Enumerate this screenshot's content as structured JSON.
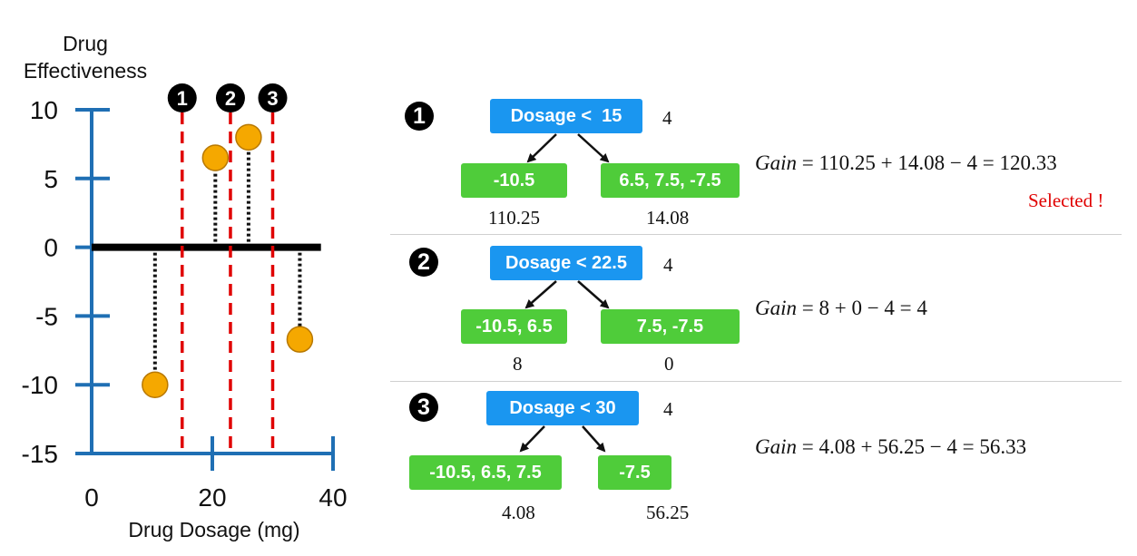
{
  "chart_data": {
    "type": "scatter",
    "ylabel_line1": "Drug",
    "ylabel_line2": "Effectiveness",
    "xlabel": "Drug Dosage (mg)",
    "xlim": [
      0,
      40
    ],
    "ylim": [
      -15,
      10
    ],
    "xticks": [
      0,
      20,
      40
    ],
    "yticks": [
      10,
      5,
      0,
      -5,
      -10,
      -15
    ],
    "points": [
      {
        "x": 10.5,
        "y": -10
      },
      {
        "x": 20.5,
        "y": 6.5
      },
      {
        "x": 26,
        "y": 8
      },
      {
        "x": 34.5,
        "y": -6.7
      }
    ],
    "baseline_y": 0,
    "baseline_xrange": [
      0,
      38
    ],
    "thresholds": [
      {
        "x": 15,
        "label": "❶"
      },
      {
        "x": 23,
        "label": "❷"
      },
      {
        "x": 30,
        "label": "❸"
      }
    ],
    "colors": {
      "axis": "#1f6fb4",
      "point": "#f5a800",
      "threshold": "#e00000",
      "baseline": "#000000"
    }
  },
  "splits": [
    {
      "marker": "1",
      "root": "Dosage <  15",
      "root_value": "4",
      "left_leaf": "-10.5",
      "right_leaf": "6.5, 7.5, -7.5",
      "left_value": "110.25",
      "right_value": "14.08",
      "gain_label": "Gain",
      "gain_expr": " = 110.25 + 14.08 − 4 = 120.33",
      "selected": "Selected !"
    },
    {
      "marker": "2",
      "root": "Dosage < 22.5",
      "root_value": "4",
      "left_leaf": "-10.5, 6.5",
      "right_leaf": "7.5, -7.5",
      "left_value": "8",
      "right_value": "0",
      "gain_label": "Gain",
      "gain_expr": " = 8 + 0 − 4 = 4"
    },
    {
      "marker": "3",
      "root": "Dosage < 30",
      "root_value": "4",
      "left_leaf": "-10.5, 6.5, 7.5",
      "right_leaf": "-7.5",
      "left_value": "4.08",
      "right_value": "56.25",
      "gain_label": "Gain",
      "gain_expr": " = 4.08 + 56.25 − 4 = 56.33"
    }
  ]
}
